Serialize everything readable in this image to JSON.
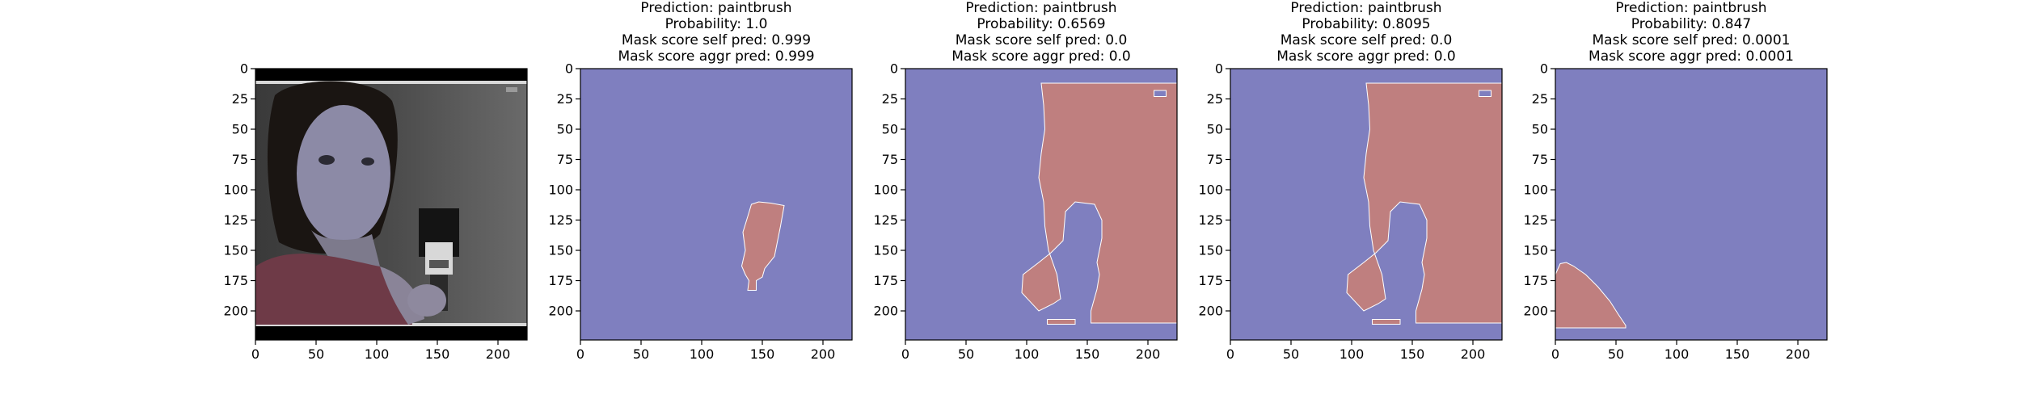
{
  "figure": {
    "panels": [
      {
        "id": "input-image",
        "title": []
      },
      {
        "id": "mask-1",
        "title": [
          "Prediction: paintbrush",
          "Probability: 1.0",
          "Mask score self pred: 0.999",
          "Mask score aggr pred: 0.999"
        ]
      },
      {
        "id": "mask-2",
        "title": [
          "Prediction: paintbrush",
          "Probability: 0.6569",
          "Mask score self pred: 0.0",
          "Mask score aggr pred: 0.0"
        ]
      },
      {
        "id": "mask-3",
        "title": [
          "Prediction: paintbrush",
          "Probability: 0.8095",
          "Mask score self pred: 0.0",
          "Mask score aggr pred: 0.0"
        ]
      },
      {
        "id": "mask-4",
        "title": [
          "Prediction: paintbrush",
          "Probability: 0.847",
          "Mask score self pred: 0.0001",
          "Mask score aggr pred: 0.0001"
        ]
      }
    ],
    "x_ticks": [
      "0",
      "50",
      "100",
      "150",
      "200"
    ],
    "y_ticks": [
      "0",
      "25",
      "50",
      "75",
      "100",
      "125",
      "150",
      "175",
      "200"
    ],
    "colors": {
      "background_mask": "#7f7fbf",
      "foreground_mask": "#bf7f7f",
      "axes": "#000000"
    }
  },
  "chart_data": [
    {
      "type": "heatmap",
      "panel": "input-image",
      "xlim": [
        0,
        224
      ],
      "ylim": [
        224,
        0
      ],
      "xticks": [
        0,
        50,
        100,
        150,
        200
      ],
      "yticks": [
        0,
        25,
        50,
        75,
        100,
        125,
        150,
        175,
        200
      ]
    },
    {
      "type": "heatmap",
      "panel": "mask-1",
      "prediction": "paintbrush",
      "probability": 1.0,
      "mask_score_self_pred": 0.999,
      "mask_score_aggr_pred": 0.999,
      "mask_region": [
        [
          141,
          112
        ],
        [
          147,
          110
        ],
        [
          157,
          111
        ],
        [
          168,
          113
        ],
        [
          165,
          130
        ],
        [
          162,
          145
        ],
        [
          160,
          155
        ],
        [
          152,
          165
        ],
        [
          150,
          172
        ],
        [
          145,
          175
        ],
        [
          145,
          183
        ],
        [
          138,
          183
        ],
        [
          139,
          175
        ],
        [
          136,
          170
        ],
        [
          133,
          163
        ],
        [
          136,
          150
        ],
        [
          134,
          135
        ],
        [
          138,
          122
        ]
      ]
    },
    {
      "type": "heatmap",
      "panel": "mask-2",
      "prediction": "paintbrush",
      "probability": 0.6569,
      "mask_score_self_pred": 0.0,
      "mask_score_aggr_pred": 0.0,
      "mask_region": [
        [
          112,
          12
        ],
        [
          224,
          12
        ],
        [
          224,
          210
        ],
        [
          153,
          210
        ],
        [
          153,
          200
        ],
        [
          158,
          182
        ],
        [
          160,
          170
        ],
        [
          158,
          160
        ],
        [
          162,
          140
        ],
        [
          162,
          125
        ],
        [
          156,
          112
        ],
        [
          140,
          110
        ],
        [
          132,
          118
        ],
        [
          130,
          142
        ],
        [
          120,
          152
        ],
        [
          110,
          160
        ],
        [
          97,
          170
        ],
        [
          96,
          185
        ],
        [
          110,
          200
        ],
        [
          122,
          194
        ],
        [
          128,
          190
        ],
        [
          125,
          170
        ],
        [
          118,
          150
        ],
        [
          115,
          130
        ],
        [
          114,
          110
        ],
        [
          110,
          90
        ],
        [
          112,
          70
        ],
        [
          115,
          50
        ],
        [
          114,
          30
        ]
      ],
      "mask_holes": [
        [
          [
            205,
            18
          ],
          [
            215,
            18
          ],
          [
            215,
            23
          ],
          [
            205,
            23
          ]
        ]
      ],
      "mask_fragments": [
        [
          [
            117,
            207
          ],
          [
            140,
            207
          ],
          [
            140,
            211
          ],
          [
            117,
            211
          ]
        ]
      ]
    },
    {
      "type": "heatmap",
      "panel": "mask-3",
      "prediction": "paintbrush",
      "probability": 0.8095,
      "mask_score_self_pred": 0.0,
      "mask_score_aggr_pred": 0.0,
      "mask_region": [
        [
          112,
          12
        ],
        [
          224,
          12
        ],
        [
          224,
          210
        ],
        [
          153,
          210
        ],
        [
          153,
          200
        ],
        [
          158,
          182
        ],
        [
          160,
          170
        ],
        [
          158,
          160
        ],
        [
          162,
          140
        ],
        [
          162,
          125
        ],
        [
          156,
          112
        ],
        [
          140,
          110
        ],
        [
          132,
          118
        ],
        [
          130,
          142
        ],
        [
          120,
          152
        ],
        [
          110,
          160
        ],
        [
          97,
          170
        ],
        [
          96,
          185
        ],
        [
          110,
          200
        ],
        [
          122,
          194
        ],
        [
          128,
          190
        ],
        [
          125,
          170
        ],
        [
          118,
          150
        ],
        [
          115,
          130
        ],
        [
          114,
          110
        ],
        [
          110,
          90
        ],
        [
          112,
          70
        ],
        [
          115,
          50
        ],
        [
          114,
          30
        ]
      ],
      "mask_holes": [
        [
          [
            205,
            18
          ],
          [
            215,
            18
          ],
          [
            215,
            23
          ],
          [
            205,
            23
          ]
        ]
      ],
      "mask_fragments": [
        [
          [
            117,
            207
          ],
          [
            140,
            207
          ],
          [
            140,
            211
          ],
          [
            117,
            211
          ]
        ]
      ]
    },
    {
      "type": "heatmap",
      "panel": "mask-4",
      "prediction": "paintbrush",
      "probability": 0.847,
      "mask_score_self_pred": 0.0001,
      "mask_score_aggr_pred": 0.0001,
      "mask_region": [
        [
          0,
          170
        ],
        [
          4,
          161
        ],
        [
          9,
          160
        ],
        [
          15,
          163
        ],
        [
          25,
          170
        ],
        [
          35,
          180
        ],
        [
          45,
          192
        ],
        [
          52,
          203
        ],
        [
          58,
          212
        ],
        [
          58,
          214
        ],
        [
          0,
          214
        ]
      ]
    }
  ]
}
